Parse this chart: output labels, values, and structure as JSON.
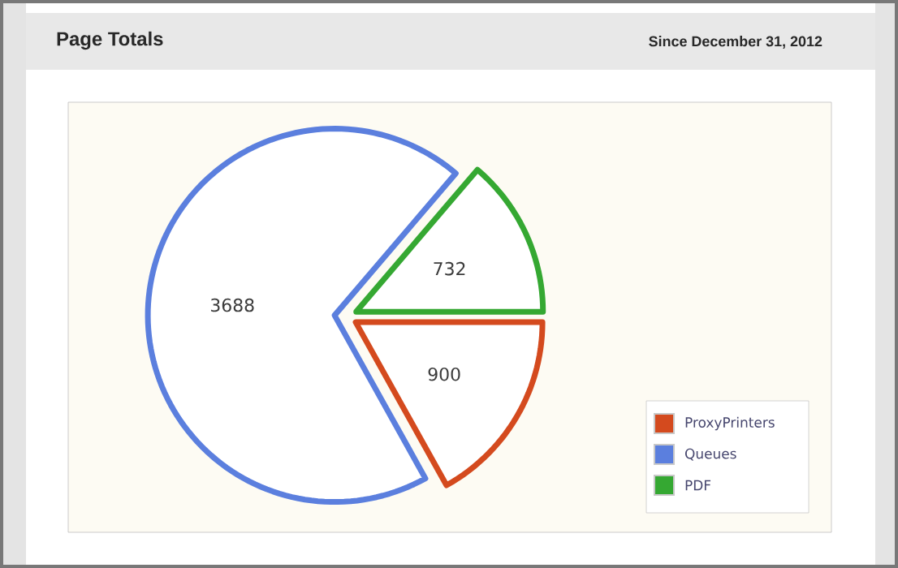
{
  "chart_data": {
    "type": "pie",
    "title": "Page Totals",
    "subtitle": "Since December 31, 2012",
    "categories": [
      "ProxyPrinters",
      "Queues",
      "PDF"
    ],
    "values": [
      900,
      3688,
      732
    ],
    "colors": [
      "#d44a1e",
      "#5b7fde",
      "#35a832"
    ],
    "data_labels": true,
    "legend": "bottom right"
  }
}
